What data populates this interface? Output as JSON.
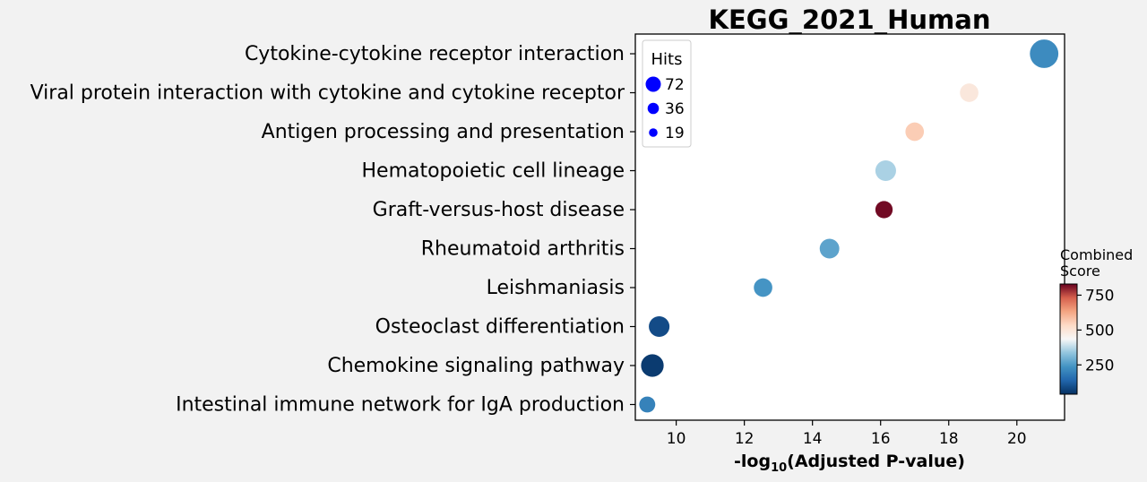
{
  "chart_data": {
    "type": "scatter",
    "title": "KEGG_2021_Human",
    "xlabel_prefix": "-log",
    "xlabel_sub": "10",
    "xlabel_suffix": "(Adjusted P-value)",
    "xlim": [
      8.8,
      21.4
    ],
    "xticks": [
      10,
      12,
      14,
      16,
      18,
      20
    ],
    "xtick_labels": [
      "10",
      "12",
      "14",
      "16",
      "18",
      "20"
    ],
    "terms": [
      {
        "label": "Cytokine-cytokine receptor interaction",
        "x": 20.8,
        "hits": 19,
        "score": 220
      },
      {
        "label": "Viral protein interaction with cytokine and cytokine receptor",
        "x": 18.6,
        "hits": 8,
        "score": 490
      },
      {
        "label": "Antigen processing and presentation",
        "x": 17.0,
        "hits": 8,
        "score": 560
      },
      {
        "label": "Hematopoietic cell lineage",
        "x": 16.15,
        "hits": 10,
        "score": 360
      },
      {
        "label": "Graft-versus-host disease",
        "x": 16.1,
        "hits": 7,
        "score": 820
      },
      {
        "label": "Rheumatoid arthritis",
        "x": 14.5,
        "hits": 9,
        "score": 270
      },
      {
        "label": "Leishmaniasis",
        "x": 12.55,
        "hits": 8,
        "score": 240
      },
      {
        "label": "Osteoclast differentiation",
        "x": 9.5,
        "hits": 10,
        "score": 90
      },
      {
        "label": "Chemokine signaling pathway",
        "x": 9.3,
        "hits": 12,
        "score": 60
      },
      {
        "label": "Intestinal immune network for IgA production",
        "x": 9.15,
        "hits": 6,
        "score": 200
      }
    ],
    "legend": {
      "title": "Hits",
      "placement": "top-left",
      "entries": [
        {
          "label": "72",
          "hits": 72
        },
        {
          "label": "36",
          "hits": 36
        },
        {
          "label": "19",
          "hits": 19
        }
      ],
      "color": "#0000ff"
    },
    "colorbar": {
      "title_line1": "Combined",
      "title_line2": "Score",
      "range": [
        40,
        830
      ],
      "ticks": [
        250,
        500,
        750
      ],
      "tick_labels": [
        "250",
        "500",
        "750"
      ],
      "colormap": "RdBu_r"
    },
    "grid": false
  }
}
